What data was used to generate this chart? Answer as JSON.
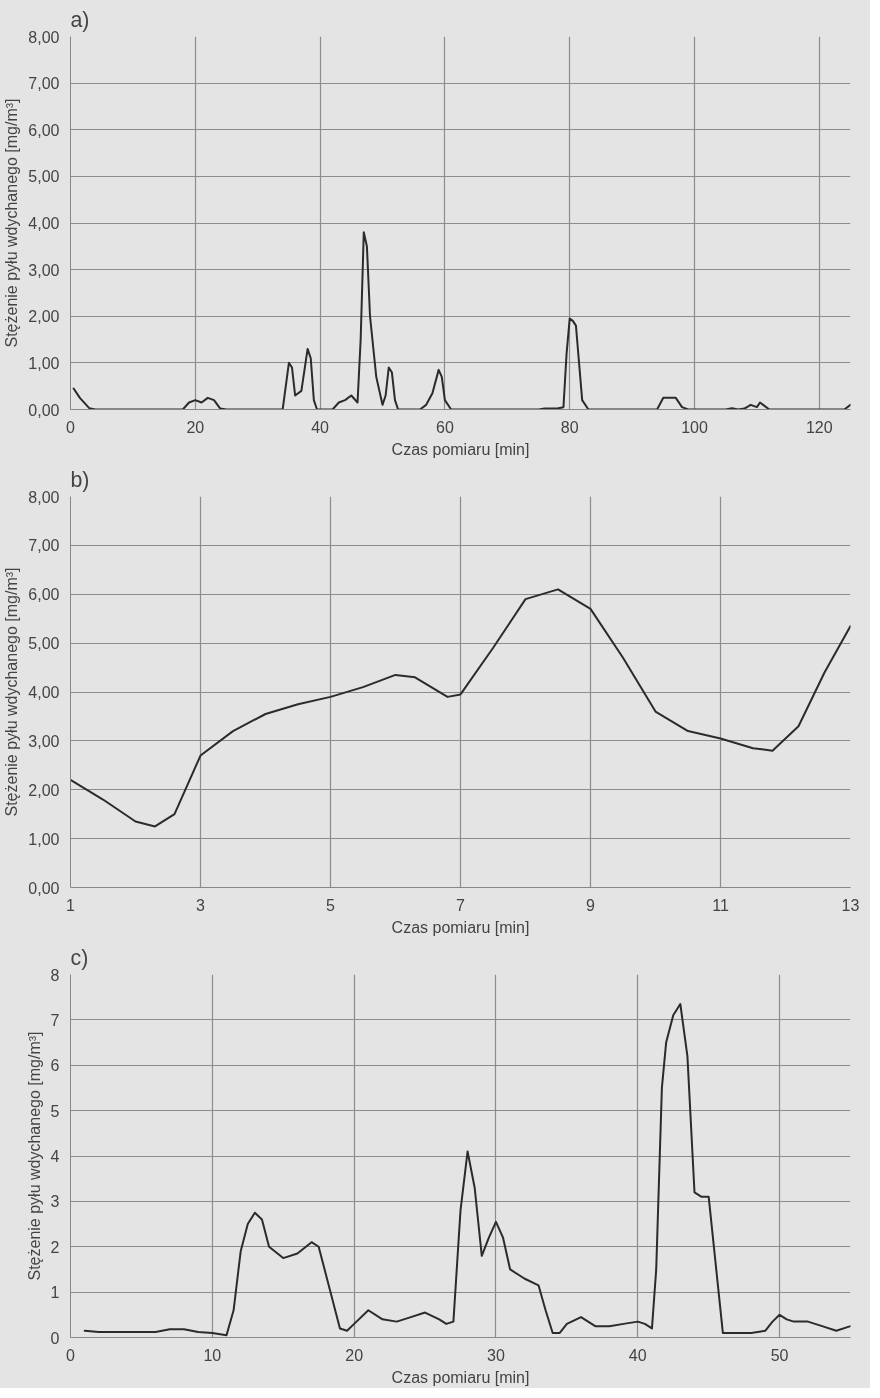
{
  "chart_data": [
    {
      "type": "line",
      "title": "a)",
      "xlabel": "Czas pomiaru [min]",
      "ylabel": "Stężenie pyłu wdychanego [mg/m³]",
      "xlim": [
        0,
        125
      ],
      "xticks": [
        0,
        20,
        40,
        60,
        80,
        100,
        120
      ],
      "ylim": [
        0,
        8
      ],
      "yticks": [
        {
          "value": 0,
          "label": "0,00"
        },
        {
          "value": 1,
          "label": "1,00"
        },
        {
          "value": 2,
          "label": "2,00"
        },
        {
          "value": 3,
          "label": "3,00"
        },
        {
          "value": 4,
          "label": "4,00"
        },
        {
          "value": 5,
          "label": "5,00"
        },
        {
          "value": 6,
          "label": "6,00"
        },
        {
          "value": 7,
          "label": "7,00"
        },
        {
          "value": 8,
          "label": "8,00"
        }
      ],
      "grid": true,
      "line_style": "solid",
      "marker": "none",
      "series": [
        {
          "color": "#2b2b2b",
          "x": [
            0.5,
            1.5,
            3,
            4,
            18,
            19,
            20,
            21,
            22,
            23,
            24,
            25,
            34,
            34.5,
            35,
            35.5,
            36,
            37,
            38,
            38.5,
            39,
            39.5,
            42,
            43,
            44,
            45,
            46,
            46.5,
            47,
            47.5,
            48,
            49,
            50,
            50.5,
            51,
            51.5,
            52,
            52.5,
            56,
            57,
            58,
            59,
            59.5,
            60,
            61,
            75,
            76,
            78,
            79,
            79.5,
            80,
            80.5,
            81,
            81.5,
            82,
            83,
            94,
            95,
            97,
            98,
            99,
            105,
            106,
            107,
            108,
            109,
            110,
            110.5,
            111,
            112,
            124,
            125
          ],
          "values": [
            0.45,
            0.25,
            0.03,
            0,
            0,
            0.15,
            0.2,
            0.15,
            0.25,
            0.2,
            0.02,
            0,
            0,
            0.5,
            1.0,
            0.9,
            0.3,
            0.4,
            1.3,
            1.1,
            0.2,
            0,
            0,
            0.15,
            0.2,
            0.3,
            0.15,
            1.5,
            3.8,
            3.5,
            2.0,
            0.7,
            0.1,
            0.3,
            0.9,
            0.8,
            0.2,
            0,
            0,
            0.1,
            0.35,
            0.85,
            0.7,
            0.2,
            0,
            0,
            0.02,
            0.02,
            0.05,
            1.2,
            1.95,
            1.9,
            1.8,
            1.0,
            0.2,
            0,
            0,
            0.25,
            0.25,
            0.05,
            0,
            0,
            0.03,
            0,
            0.02,
            0.1,
            0.05,
            0.15,
            0.1,
            0,
            0,
            0.1
          ]
        }
      ]
    },
    {
      "type": "line",
      "title": "b)",
      "xlabel": "Czas pomiaru [min]",
      "ylabel": "Stężenie pyłu wdychanego [mg/m³]",
      "xlim": [
        1,
        13
      ],
      "xticks": [
        1,
        3,
        5,
        7,
        9,
        11,
        13
      ],
      "ylim": [
        0,
        8
      ],
      "yticks": [
        {
          "value": 0,
          "label": "0,00"
        },
        {
          "value": 1,
          "label": "1,00"
        },
        {
          "value": 2,
          "label": "2,00"
        },
        {
          "value": 3,
          "label": "3,00"
        },
        {
          "value": 4,
          "label": "4,00"
        },
        {
          "value": 5,
          "label": "5,00"
        },
        {
          "value": 6,
          "label": "6,00"
        },
        {
          "value": 7,
          "label": "7,00"
        },
        {
          "value": 8,
          "label": "8,00"
        }
      ],
      "grid": true,
      "line_style": "solid",
      "marker": "none",
      "series": [
        {
          "color": "#2b2b2b",
          "x": [
            1,
            1.5,
            2,
            2.3,
            2.6,
            3,
            3.5,
            4,
            4.5,
            5,
            5.5,
            6,
            6.3,
            6.8,
            7,
            7.5,
            8,
            8.5,
            9,
            9.5,
            10,
            10.5,
            11,
            11.5,
            11.8,
            12.2,
            12.6,
            13
          ],
          "values": [
            2.2,
            1.8,
            1.35,
            1.25,
            1.5,
            2.7,
            3.2,
            3.55,
            3.75,
            3.9,
            4.1,
            4.35,
            4.3,
            3.9,
            3.95,
            4.9,
            5.9,
            6.1,
            5.7,
            4.7,
            3.6,
            3.2,
            3.05,
            2.85,
            2.8,
            3.3,
            4.4,
            5.35
          ]
        }
      ]
    },
    {
      "type": "line",
      "title": "c)",
      "xlabel": "Czas pomiaru [min]",
      "ylabel": "Stężenie pyłu wdychanego [mg/m³]",
      "xlim": [
        0,
        55
      ],
      "xticks": [
        0,
        10,
        20,
        30,
        40,
        50
      ],
      "ylim": [
        0,
        8
      ],
      "yticks": [
        0,
        1,
        2,
        3,
        4,
        5,
        6,
        7,
        8
      ],
      "grid": true,
      "line_style": "solid",
      "marker": "none",
      "series": [
        {
          "color": "#2b2b2b",
          "x": [
            1,
            2,
            5,
            6,
            7,
            8,
            9,
            10,
            11,
            11.5,
            12,
            12.5,
            13,
            13.5,
            14,
            15,
            16,
            17,
            17.5,
            18,
            19,
            19.5,
            20,
            21,
            22,
            23,
            24,
            25,
            26,
            26.5,
            27,
            27.5,
            28,
            28.5,
            29,
            29.5,
            30,
            30.5,
            31,
            32,
            33,
            33.5,
            34,
            34.5,
            35,
            36,
            37,
            38,
            39,
            40,
            40.5,
            41,
            41.3,
            41.7,
            42,
            42.5,
            43,
            43.5,
            44,
            44.5,
            45,
            45.5,
            46,
            47,
            48,
            49,
            49.5,
            50,
            50.5,
            51,
            52,
            53,
            54,
            55
          ],
          "values": [
            0.15,
            0.12,
            0.12,
            0.12,
            0.18,
            0.18,
            0.12,
            0.1,
            0.05,
            0.6,
            1.9,
            2.5,
            2.75,
            2.6,
            2.0,
            1.75,
            1.85,
            2.1,
            2.0,
            1.4,
            0.2,
            0.15,
            0.3,
            0.6,
            0.4,
            0.35,
            0.45,
            0.55,
            0.4,
            0.3,
            0.35,
            2.8,
            4.1,
            3.3,
            1.8,
            2.2,
            2.55,
            2.2,
            1.5,
            1.3,
            1.15,
            0.6,
            0.1,
            0.1,
            0.3,
            0.45,
            0.25,
            0.25,
            0.3,
            0.35,
            0.3,
            0.2,
            1.5,
            5.5,
            6.5,
            7.1,
            7.35,
            6.2,
            3.2,
            3.1,
            3.1,
            1.6,
            0.1,
            0.1,
            0.1,
            0.15,
            0.35,
            0.5,
            0.4,
            0.35,
            0.35,
            0.25,
            0.15,
            0.25
          ]
        }
      ]
    }
  ]
}
